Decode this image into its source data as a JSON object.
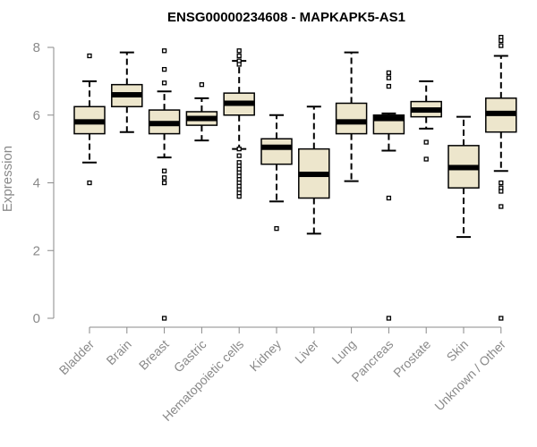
{
  "chart_data": {
    "type": "boxplot",
    "title": "ENSG00000234608 - MAPKAPK5-AS1",
    "xlabel": "",
    "ylabel": "Expression",
    "ylim": [
      0,
      8
    ],
    "yticks": [
      0,
      2,
      4,
      6,
      8
    ],
    "grid": false,
    "box_fill": "#ede6cc",
    "box_stroke": "#000000",
    "axis_color": "#8a8a8a",
    "categories": [
      "Bladder",
      "Brain",
      "Breast",
      "Gastric",
      "Hematopoietic cells",
      "Kidney",
      "Liver",
      "Lung",
      "Pancreas",
      "Prostate",
      "Skin",
      "Unknown / Other"
    ],
    "boxes": [
      {
        "name": "Bladder",
        "whisker_low": 4.6,
        "q1": 5.45,
        "median": 5.8,
        "q3": 6.25,
        "whisker_high": 7.0,
        "outliers": [
          7.75,
          4.0
        ]
      },
      {
        "name": "Brain",
        "whisker_low": 5.5,
        "q1": 6.25,
        "median": 6.6,
        "q3": 6.9,
        "whisker_high": 7.85,
        "outliers": []
      },
      {
        "name": "Breast",
        "whisker_low": 4.75,
        "q1": 5.45,
        "median": 5.75,
        "q3": 6.15,
        "whisker_high": 6.7,
        "outliers": [
          7.9,
          7.35,
          6.95,
          4.35,
          4.15,
          4.0,
          0.0
        ]
      },
      {
        "name": "Gastric",
        "whisker_low": 5.25,
        "q1": 5.7,
        "median": 5.9,
        "q3": 6.1,
        "whisker_high": 6.5,
        "outliers": [
          6.9
        ]
      },
      {
        "name": "Hematopoietic cells",
        "whisker_low": 5.0,
        "q1": 6.0,
        "median": 6.35,
        "q3": 6.65,
        "whisker_high": 7.6,
        "outliers": [
          7.9,
          7.75,
          7.6,
          7.5,
          5.0,
          4.8,
          4.6,
          4.5,
          4.4,
          4.3,
          4.2,
          4.1,
          4.0,
          3.9,
          3.8,
          3.7,
          3.6
        ]
      },
      {
        "name": "Kidney",
        "whisker_low": 3.45,
        "q1": 4.55,
        "median": 5.05,
        "q3": 5.3,
        "whisker_high": 6.0,
        "outliers": [
          2.65
        ]
      },
      {
        "name": "Liver",
        "whisker_low": 2.5,
        "q1": 3.55,
        "median": 4.25,
        "q3": 5.0,
        "whisker_high": 6.25,
        "outliers": []
      },
      {
        "name": "Lung",
        "whisker_low": 4.05,
        "q1": 5.45,
        "median": 5.8,
        "q3": 6.35,
        "whisker_high": 7.85,
        "outliers": []
      },
      {
        "name": "Pancreas",
        "whisker_low": 4.95,
        "q1": 5.45,
        "median": 5.9,
        "q3": 6.0,
        "whisker_high": 6.05,
        "outliers": [
          7.25,
          7.1,
          6.85,
          3.55,
          0.0
        ]
      },
      {
        "name": "Prostate",
        "whisker_low": 5.6,
        "q1": 5.95,
        "median": 6.15,
        "q3": 6.4,
        "whisker_high": 7.0,
        "outliers": [
          5.2,
          4.7
        ]
      },
      {
        "name": "Skin",
        "whisker_low": 2.4,
        "q1": 3.85,
        "median": 4.45,
        "q3": 5.1,
        "whisker_high": 5.95,
        "outliers": []
      },
      {
        "name": "Unknown / Other",
        "whisker_low": 4.35,
        "q1": 5.5,
        "median": 6.05,
        "q3": 6.5,
        "whisker_high": 7.75,
        "outliers": [
          8.3,
          8.2,
          8.05,
          4.0,
          3.85,
          3.75,
          3.3,
          0.0
        ]
      }
    ]
  }
}
